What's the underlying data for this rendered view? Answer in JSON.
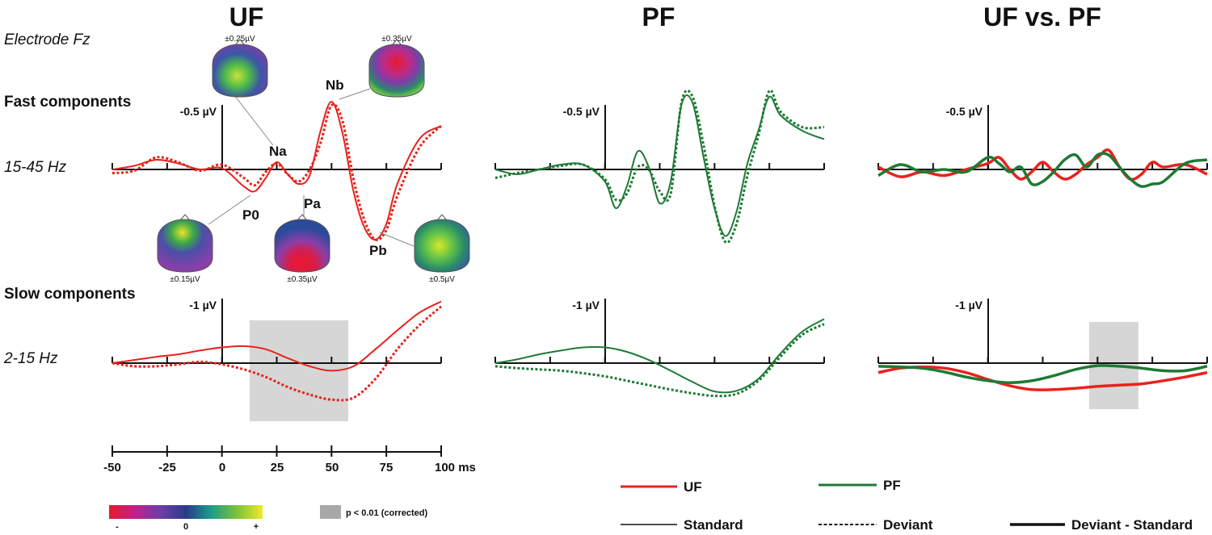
{
  "titles": {
    "uf": "UF",
    "pf": "PF",
    "uf_vs_pf": "UF vs. PF"
  },
  "row_labels": {
    "electrode": "Electrode Fz",
    "fast": "Fast components",
    "fast_band": "15-45 Hz",
    "slow": "Slow components",
    "slow_band": "2-15 Hz"
  },
  "y_units": {
    "fast": "-0.5 µV",
    "slow": "-1 µV"
  },
  "x_axis": {
    "ticks": [
      "-50",
      "-25",
      "0",
      "25",
      "50",
      "75",
      "100 ms"
    ]
  },
  "peaks": {
    "na": "Na",
    "nb": "Nb",
    "p0": "P0",
    "pa": "Pa",
    "pb": "Pb"
  },
  "topomaps": {
    "na": "±0.25µV",
    "nb": "±0.35µV",
    "p0": "±0.15µV",
    "pa": "±0.35µV",
    "pb": "±0.5µV"
  },
  "colorbar": {
    "min": "-",
    "mid": "0",
    "max": "+"
  },
  "significance": {
    "label": "p < 0.01 (corrected)",
    "color": "#a8a8a8"
  },
  "legend": {
    "uf": "UF",
    "pf": "PF",
    "standard": "Standard",
    "deviant": "Deviant",
    "diff": "Deviant - Standard",
    "uf_color": "#e8221c",
    "pf_color": "#1e7a34"
  },
  "chart_data": [
    {
      "panel": "UF fast components",
      "type": "line",
      "x_unit": "ms",
      "xlim": [
        -50,
        100
      ],
      "ylim_note": "negative up",
      "x": [
        -50,
        -40,
        -30,
        -20,
        -10,
        0,
        10,
        15,
        20,
        25,
        30,
        35,
        40,
        45,
        50,
        55,
        60,
        65,
        70,
        75,
        80,
        90,
        100
      ],
      "series": [
        {
          "name": "Standard",
          "values": [
            0.0,
            -0.03,
            -0.08,
            -0.05,
            0.0,
            -0.01,
            0.14,
            0.18,
            0.07,
            -0.06,
            0.04,
            0.12,
            0.05,
            -0.32,
            -0.56,
            -0.3,
            0.18,
            0.48,
            0.58,
            0.45,
            0.12,
            -0.25,
            -0.36
          ]
        },
        {
          "name": "Deviant",
          "values": [
            0.03,
            0.01,
            -0.1,
            -0.06,
            0.01,
            -0.04,
            0.07,
            0.13,
            0.02,
            -0.05,
            0.04,
            0.1,
            0.0,
            -0.22,
            -0.53,
            -0.4,
            0.08,
            0.42,
            0.58,
            0.5,
            0.22,
            -0.18,
            -0.36
          ]
        }
      ]
    },
    {
      "panel": "PF fast components",
      "type": "line",
      "x_unit": "ms",
      "xlim": [
        -50,
        100
      ],
      "x": [
        -50,
        -40,
        -30,
        -20,
        -10,
        0,
        5,
        10,
        15,
        20,
        25,
        30,
        35,
        40,
        45,
        50,
        55,
        60,
        65,
        70,
        75,
        80,
        90,
        100
      ],
      "series": [
        {
          "name": "Standard",
          "values": [
            0.0,
            0.04,
            0.0,
            -0.04,
            -0.04,
            0.1,
            0.32,
            0.14,
            -0.15,
            -0.02,
            0.28,
            0.1,
            -0.54,
            -0.55,
            -0.1,
            0.32,
            0.55,
            0.35,
            -0.05,
            -0.32,
            -0.6,
            -0.45,
            -0.32,
            -0.25
          ]
        },
        {
          "name": "Deviant",
          "values": [
            0.07,
            0.03,
            0.0,
            -0.03,
            -0.04,
            0.08,
            0.25,
            0.2,
            -0.02,
            0.0,
            0.18,
            0.2,
            -0.56,
            -0.6,
            -0.2,
            0.3,
            0.6,
            0.45,
            0.05,
            -0.28,
            -0.65,
            -0.48,
            -0.35,
            -0.35
          ]
        }
      ]
    },
    {
      "panel": "UF vs. PF fast components (Deviant - Standard)",
      "type": "line",
      "x_unit": "ms",
      "xlim": [
        -50,
        100
      ],
      "x": [
        -50,
        -40,
        -30,
        -20,
        -10,
        0,
        5,
        10,
        15,
        20,
        25,
        30,
        35,
        40,
        45,
        50,
        55,
        60,
        65,
        70,
        75,
        80,
        90,
        100
      ],
      "series": [
        {
          "name": "UF",
          "values": [
            -0.02,
            0.06,
            0.02,
            0.05,
            0.0,
            -0.05,
            -0.1,
            0.0,
            0.08,
            0.02,
            -0.06,
            0.02,
            0.08,
            0.04,
            -0.04,
            -0.1,
            -0.16,
            -0.02,
            0.08,
            0.04,
            -0.06,
            -0.02,
            -0.04,
            0.04
          ]
        },
        {
          "name": "PF",
          "values": [
            0.05,
            -0.04,
            0.02,
            0.0,
            0.02,
            -0.1,
            -0.05,
            0.02,
            -0.02,
            0.12,
            0.1,
            0.02,
            -0.08,
            -0.12,
            -0.02,
            -0.12,
            -0.12,
            -0.02,
            0.08,
            0.14,
            0.12,
            0.1,
            -0.05,
            -0.08
          ]
        }
      ]
    },
    {
      "panel": "UF slow components",
      "type": "line",
      "x_unit": "ms",
      "xlim": [
        -50,
        100
      ],
      "significant_window_ms": [
        13,
        57
      ],
      "x": [
        -50,
        -40,
        -30,
        -20,
        -10,
        0,
        10,
        20,
        30,
        40,
        50,
        60,
        70,
        80,
        90,
        100
      ],
      "series": [
        {
          "name": "Standard",
          "values": [
            0.0,
            -0.05,
            -0.1,
            -0.14,
            -0.2,
            -0.25,
            -0.27,
            -0.22,
            -0.08,
            0.05,
            0.12,
            0.05,
            -0.22,
            -0.52,
            -0.8,
            -0.98
          ]
        },
        {
          "name": "Deviant",
          "values": [
            0.0,
            0.05,
            0.05,
            0.02,
            -0.02,
            0.02,
            0.1,
            0.22,
            0.38,
            0.5,
            0.58,
            0.55,
            0.25,
            -0.22,
            -0.6,
            -0.9
          ]
        }
      ]
    },
    {
      "panel": "PF slow components",
      "type": "line",
      "x_unit": "ms",
      "xlim": [
        -50,
        100
      ],
      "x": [
        -50,
        -40,
        -30,
        -20,
        -10,
        0,
        10,
        20,
        30,
        40,
        50,
        60,
        70,
        80,
        90,
        100
      ],
      "series": [
        {
          "name": "Standard",
          "values": [
            0.0,
            -0.06,
            -0.14,
            -0.2,
            -0.25,
            -0.25,
            -0.18,
            -0.05,
            0.12,
            0.3,
            0.45,
            0.44,
            0.25,
            -0.15,
            -0.5,
            -0.7
          ]
        },
        {
          "name": "Deviant",
          "values": [
            0.05,
            0.08,
            0.1,
            0.12,
            0.16,
            0.21,
            0.28,
            0.35,
            0.42,
            0.48,
            0.52,
            0.49,
            0.28,
            -0.1,
            -0.45,
            -0.62
          ]
        }
      ]
    },
    {
      "panel": "UF vs. PF slow components (Deviant - Standard)",
      "type": "line",
      "x_unit": "ms",
      "xlim": [
        -50,
        100
      ],
      "significant_window_ms": [
        45,
        67
      ],
      "x": [
        -50,
        -40,
        -30,
        -20,
        -10,
        0,
        10,
        20,
        30,
        40,
        50,
        60,
        70,
        80,
        90,
        100
      ],
      "series": [
        {
          "name": "UF",
          "values": [
            0.15,
            0.08,
            0.06,
            0.08,
            0.15,
            0.26,
            0.36,
            0.42,
            0.42,
            0.4,
            0.37,
            0.35,
            0.33,
            0.28,
            0.22,
            0.15
          ]
        },
        {
          "name": "PF",
          "values": [
            0.05,
            0.06,
            0.08,
            0.14,
            0.22,
            0.28,
            0.31,
            0.28,
            0.2,
            0.1,
            0.04,
            0.05,
            0.08,
            0.12,
            0.12,
            0.05
          ]
        }
      ]
    }
  ]
}
